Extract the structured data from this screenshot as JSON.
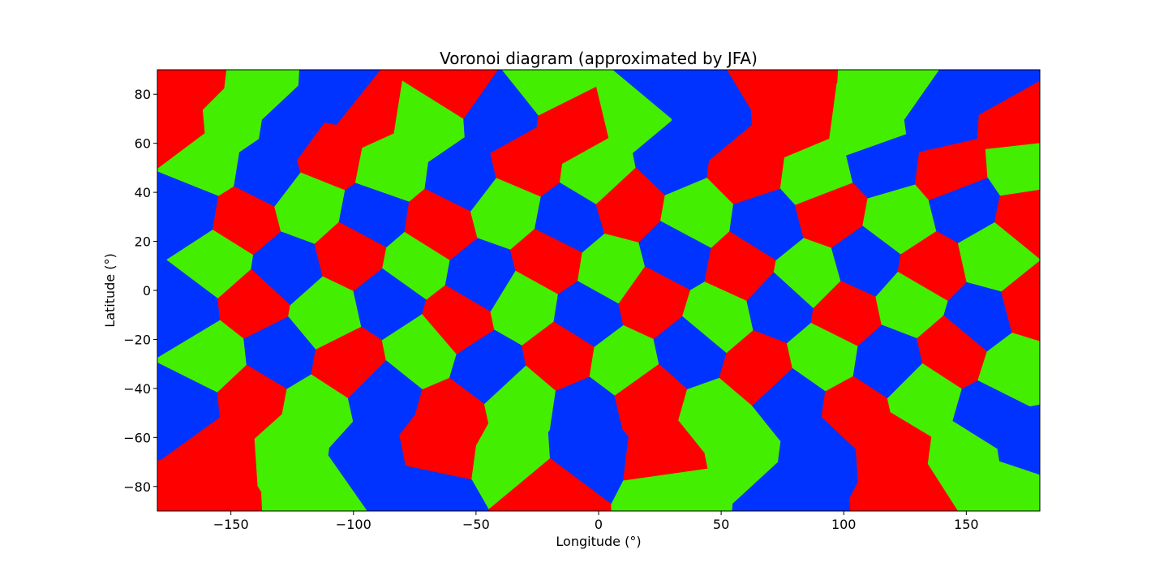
{
  "chart_data": {
    "type": "heatmap",
    "title": "Voronoi diagram (approximated by JFA)",
    "xlabel": "Longitude (°)",
    "ylabel": "Latitude (°)",
    "xlim": [
      -180,
      180
    ],
    "ylim": [
      -90,
      90
    ],
    "xticks": [
      -150,
      -100,
      -50,
      0,
      50,
      100,
      150
    ],
    "xtick_labels": [
      "−150",
      "−100",
      "−50",
      "0",
      "50",
      "100",
      "150"
    ],
    "yticks": [
      -80,
      -60,
      -40,
      -20,
      0,
      20,
      40,
      60,
      80
    ],
    "ytick_labels": [
      "−80",
      "−60",
      "−40",
      "−20",
      "0",
      "20",
      "40",
      "60",
      "80"
    ],
    "grid": false,
    "colormap": "hsv",
    "palette": [
      "#ff0000",
      "#ff2200",
      "#ff8800",
      "#ffcc00",
      "#ffee00",
      "#ccff00",
      "#88ff00",
      "#44ee00",
      "#00ff44",
      "#00ff99",
      "#00ffcc",
      "#00eeff",
      "#00bbff",
      "#0066ff",
      "#0033ff",
      "#2200ff",
      "#6600ff",
      "#9900ff",
      "#cc00ff",
      "#ff00cc",
      "#ff0099",
      "#ff0055"
    ],
    "sites": [
      [
        -165,
        85
      ],
      [
        -140,
        82
      ],
      [
        -105,
        80
      ],
      [
        -60,
        84
      ],
      [
        -20,
        86
      ],
      [
        25,
        84
      ],
      [
        75,
        86
      ],
      [
        120,
        84
      ],
      [
        160,
        86
      ],
      [
        -172,
        68
      ],
      [
        -150,
        70
      ],
      [
        -125,
        66
      ],
      [
        -95,
        72
      ],
      [
        -70,
        68
      ],
      [
        -40,
        70
      ],
      [
        -10,
        66
      ],
      [
        15,
        72
      ],
      [
        45,
        68
      ],
      [
        80,
        70
      ],
      [
        110,
        66
      ],
      [
        140,
        70
      ],
      [
        170,
        68
      ],
      [
        -160,
        52
      ],
      [
        -135,
        48
      ],
      [
        -110,
        55
      ],
      [
        -85,
        50
      ],
      [
        -55,
        46
      ],
      [
        -30,
        52
      ],
      [
        0,
        48
      ],
      [
        30,
        54
      ],
      [
        60,
        50
      ],
      [
        90,
        46
      ],
      [
        115,
        52
      ],
      [
        145,
        48
      ],
      [
        172,
        50
      ],
      [
        -168,
        32
      ],
      [
        -145,
        28
      ],
      [
        -118,
        35
      ],
      [
        -92,
        30
      ],
      [
        -65,
        26
      ],
      [
        -38,
        33
      ],
      [
        -12,
        28
      ],
      [
        12,
        35
      ],
      [
        40,
        30
      ],
      [
        68,
        26
      ],
      [
        95,
        33
      ],
      [
        122,
        28
      ],
      [
        150,
        35
      ],
      [
        175,
        30
      ],
      [
        -155,
        12
      ],
      [
        -128,
        8
      ],
      [
        -100,
        15
      ],
      [
        -75,
        10
      ],
      [
        -48,
        5
      ],
      [
        -20,
        12
      ],
      [
        5,
        8
      ],
      [
        32,
        15
      ],
      [
        58,
        10
      ],
      [
        85,
        5
      ],
      [
        110,
        12
      ],
      [
        135,
        8
      ],
      [
        162,
        14
      ],
      [
        -170,
        -8
      ],
      [
        -140,
        -5
      ],
      [
        -112,
        -10
      ],
      [
        -85,
        -4
      ],
      [
        -58,
        -12
      ],
      [
        -30,
        -6
      ],
      [
        -5,
        -10
      ],
      [
        22,
        -4
      ],
      [
        48,
        -12
      ],
      [
        75,
        -6
      ],
      [
        100,
        -10
      ],
      [
        128,
        -4
      ],
      [
        155,
        -12
      ],
      [
        178,
        -6
      ],
      [
        -158,
        -28
      ],
      [
        -130,
        -25
      ],
      [
        -102,
        -30
      ],
      [
        -72,
        -24
      ],
      [
        -45,
        -32
      ],
      [
        -15,
        -26
      ],
      [
        10,
        -30
      ],
      [
        38,
        -24
      ],
      [
        65,
        -32
      ],
      [
        92,
        -26
      ],
      [
        118,
        -30
      ],
      [
        145,
        -24
      ],
      [
        170,
        -32
      ],
      [
        -168,
        -48
      ],
      [
        -142,
        -45
      ],
      [
        -115,
        -50
      ],
      [
        -88,
        -44
      ],
      [
        -60,
        -52
      ],
      [
        -32,
        -46
      ],
      [
        -5,
        -50
      ],
      [
        20,
        -44
      ],
      [
        48,
        -52
      ],
      [
        78,
        -46
      ],
      [
        105,
        -50
      ],
      [
        132,
        -44
      ],
      [
        160,
        -52
      ],
      [
        -155,
        -66
      ],
      [
        -125,
        -64
      ],
      [
        -95,
        -68
      ],
      [
        -65,
        -62
      ],
      [
        -35,
        -66
      ],
      [
        -5,
        -64
      ],
      [
        28,
        -68
      ],
      [
        58,
        -62
      ],
      [
        90,
        -66
      ],
      [
        120,
        -64
      ],
      [
        150,
        -68
      ],
      [
        176,
        -64
      ],
      [
        -160,
        -84
      ],
      [
        -115,
        -82
      ],
      [
        -70,
        -86
      ],
      [
        -20,
        -84
      ],
      [
        30,
        -82
      ],
      [
        80,
        -86
      ],
      [
        125,
        -84
      ],
      [
        170,
        -82
      ]
    ]
  }
}
